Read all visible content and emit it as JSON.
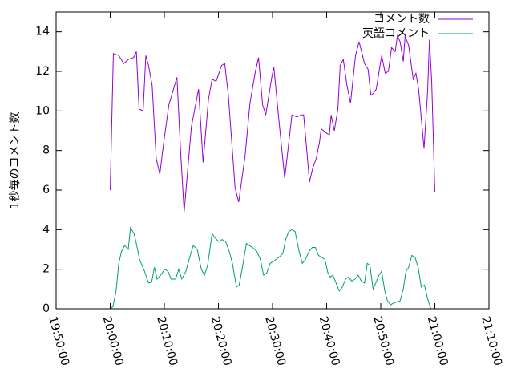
{
  "chart_data": {
    "type": "line",
    "title": "",
    "xlabel": "",
    "ylabel": "1秒毎のコメント数",
    "xlim": [
      "19:50:00",
      "21:10:00"
    ],
    "ylim": [
      0,
      15
    ],
    "x_ticks": [
      "19:50:00",
      "20:00:00",
      "20:10:00",
      "20:20:00",
      "20:30:00",
      "20:40:00",
      "20:50:00",
      "21:00:00",
      "21:10:00"
    ],
    "y_ticks": [
      "0",
      "2",
      "4",
      "6",
      "8",
      "10",
      "12",
      "14"
    ],
    "grid": false,
    "legend": "top-right",
    "series": [
      {
        "name": "コメント数",
        "color": "#9400d3",
        "points": [
          [
            "20:00:00",
            6.0
          ],
          [
            "20:00:35",
            12.9
          ],
          [
            "20:01:35",
            12.8
          ],
          [
            "20:02:30",
            12.4
          ],
          [
            "20:03:20",
            12.6
          ],
          [
            "20:04:20",
            12.7
          ],
          [
            "20:04:50",
            13.0
          ],
          [
            "20:05:20",
            10.1
          ],
          [
            "20:06:05",
            10.0
          ],
          [
            "20:06:35",
            12.8
          ],
          [
            "20:07:05",
            12.3
          ],
          [
            "20:07:45",
            11.3
          ],
          [
            "20:08:30",
            7.6
          ],
          [
            "20:09:10",
            6.8
          ],
          [
            "20:09:50",
            8.3
          ],
          [
            "20:10:50",
            10.3
          ],
          [
            "20:12:20",
            11.7
          ],
          [
            "20:13:00",
            8.0
          ],
          [
            "20:13:40",
            4.9
          ],
          [
            "20:15:00",
            9.2
          ],
          [
            "20:16:20",
            11.1
          ],
          [
            "20:17:10",
            7.4
          ],
          [
            "20:18:10",
            10.6
          ],
          [
            "20:18:50",
            11.6
          ],
          [
            "20:19:35",
            11.5
          ],
          [
            "20:20:35",
            12.3
          ],
          [
            "20:21:10",
            12.4
          ],
          [
            "20:21:50",
            10.8
          ],
          [
            "20:23:05",
            6.1
          ],
          [
            "20:23:45",
            5.4
          ],
          [
            "20:24:55",
            7.7
          ],
          [
            "20:25:50",
            10.4
          ],
          [
            "20:26:50",
            12.0
          ],
          [
            "20:27:25",
            12.7
          ],
          [
            "20:28:10",
            10.3
          ],
          [
            "20:28:45",
            9.8
          ],
          [
            "20:29:55",
            11.8
          ],
          [
            "20:30:15",
            12.2
          ],
          [
            "20:31:05",
            9.8
          ],
          [
            "20:32:15",
            6.6
          ],
          [
            "20:33:35",
            9.8
          ],
          [
            "20:34:30",
            9.7
          ],
          [
            "20:35:20",
            9.8
          ],
          [
            "20:35:45",
            9.8
          ],
          [
            "20:36:20",
            8.0
          ],
          [
            "20:36:50",
            6.4
          ],
          [
            "20:37:25",
            7.1
          ],
          [
            "20:38:05",
            7.6
          ],
          [
            "20:38:40",
            8.4
          ],
          [
            "20:39:00",
            9.1
          ],
          [
            "20:39:50",
            8.9
          ],
          [
            "20:40:30",
            8.8
          ],
          [
            "20:40:50",
            9.8
          ],
          [
            "20:41:25",
            9.0
          ],
          [
            "20:42:05",
            10.1
          ],
          [
            "20:42:30",
            12.3
          ],
          [
            "20:43:05",
            12.6
          ],
          [
            "20:43:45",
            11.3
          ],
          [
            "20:44:25",
            10.4
          ],
          [
            "20:45:20",
            12.8
          ],
          [
            "20:46:00",
            13.5
          ],
          [
            "20:47:00",
            12.4
          ],
          [
            "20:47:40",
            12.1
          ],
          [
            "20:48:10",
            10.8
          ],
          [
            "20:48:40",
            10.9
          ],
          [
            "20:49:10",
            11.1
          ],
          [
            "20:50:10",
            12.8
          ],
          [
            "20:50:50",
            11.9
          ],
          [
            "20:51:25",
            12.0
          ],
          [
            "20:52:00",
            13.2
          ],
          [
            "20:52:40",
            13.0
          ],
          [
            "20:53:05",
            13.8
          ],
          [
            "20:53:35",
            13.5
          ],
          [
            "20:54:10",
            12.5
          ],
          [
            "20:54:30",
            13.8
          ],
          [
            "20:55:10",
            13.3
          ],
          [
            "20:56:00",
            11.6
          ],
          [
            "20:56:30",
            11.9
          ],
          [
            "20:57:00",
            11.1
          ],
          [
            "20:58:00",
            8.1
          ],
          [
            "20:58:40",
            11.0
          ],
          [
            "20:59:00",
            13.6
          ],
          [
            "20:59:25",
            11.5
          ],
          [
            "21:00:00",
            5.9
          ]
        ]
      },
      {
        "name": "英語コメント",
        "color": "#009e73",
        "points": [
          [
            "20:00:00",
            0.0
          ],
          [
            "20:00:30",
            0.1
          ],
          [
            "20:01:05",
            0.9
          ],
          [
            "20:01:35",
            2.3
          ],
          [
            "20:02:05",
            2.9
          ],
          [
            "20:02:40",
            3.2
          ],
          [
            "20:03:20",
            3.0
          ],
          [
            "20:03:45",
            4.1
          ],
          [
            "20:04:25",
            3.8
          ],
          [
            "20:04:50",
            3.3
          ],
          [
            "20:05:25",
            2.5
          ],
          [
            "20:06:20",
            1.9
          ],
          [
            "20:07:05",
            1.3
          ],
          [
            "20:07:40",
            1.35
          ],
          [
            "20:08:10",
            2.1
          ],
          [
            "20:08:40",
            1.5
          ],
          [
            "20:09:20",
            1.7
          ],
          [
            "20:10:05",
            2.0
          ],
          [
            "20:10:40",
            1.9
          ],
          [
            "20:11:15",
            1.5
          ],
          [
            "20:12:05",
            1.5
          ],
          [
            "20:12:40",
            2.0
          ],
          [
            "20:13:15",
            1.5
          ],
          [
            "20:14:00",
            1.9
          ],
          [
            "20:14:35",
            2.5
          ],
          [
            "20:15:20",
            3.2
          ],
          [
            "20:16:05",
            3.0
          ],
          [
            "20:16:50",
            2.0
          ],
          [
            "20:17:25",
            1.7
          ],
          [
            "20:18:00",
            2.2
          ],
          [
            "20:18:50",
            3.8
          ],
          [
            "20:19:20",
            3.6
          ],
          [
            "20:20:00",
            3.4
          ],
          [
            "20:20:40",
            3.5
          ],
          [
            "20:21:20",
            3.4
          ],
          [
            "20:22:00",
            2.9
          ],
          [
            "20:22:35",
            2.3
          ],
          [
            "20:23:20",
            1.1
          ],
          [
            "20:23:50",
            1.2
          ],
          [
            "20:24:30",
            2.2
          ],
          [
            "20:25:10",
            3.3
          ],
          [
            "20:25:40",
            3.2
          ],
          [
            "20:26:20",
            3.1
          ],
          [
            "20:27:05",
            2.9
          ],
          [
            "20:27:45",
            2.5
          ],
          [
            "20:28:20",
            1.7
          ],
          [
            "20:28:55",
            1.8
          ],
          [
            "20:29:35",
            2.3
          ],
          [
            "20:30:10",
            2.4
          ],
          [
            "20:31:10",
            2.6
          ],
          [
            "20:31:55",
            2.8
          ],
          [
            "20:32:25",
            3.5
          ],
          [
            "20:33:00",
            3.9
          ],
          [
            "20:33:35",
            4.0
          ],
          [
            "20:34:10",
            3.9
          ],
          [
            "20:34:55",
            2.9
          ],
          [
            "20:35:30",
            2.3
          ],
          [
            "20:36:05",
            2.5
          ],
          [
            "20:36:45",
            2.9
          ],
          [
            "20:37:20",
            3.1
          ],
          [
            "20:37:55",
            3.1
          ],
          [
            "20:38:30",
            2.7
          ],
          [
            "20:39:05",
            2.6
          ],
          [
            "20:39:40",
            2.5
          ],
          [
            "20:40:15",
            1.8
          ],
          [
            "20:40:40",
            1.6
          ],
          [
            "20:41:10",
            1.7
          ],
          [
            "20:41:45",
            1.3
          ],
          [
            "20:42:20",
            0.9
          ],
          [
            "20:42:55",
            1.1
          ],
          [
            "20:43:30",
            1.5
          ],
          [
            "20:44:00",
            1.6
          ],
          [
            "20:44:40",
            1.4
          ],
          [
            "20:45:15",
            1.5
          ],
          [
            "20:45:50",
            1.7
          ],
          [
            "20:46:25",
            1.4
          ],
          [
            "20:47:00",
            1.3
          ],
          [
            "20:47:30",
            2.3
          ],
          [
            "20:48:00",
            2.2
          ],
          [
            "20:48:35",
            1.0
          ],
          [
            "20:49:05",
            1.3
          ],
          [
            "20:49:40",
            1.7
          ],
          [
            "20:50:10",
            1.9
          ],
          [
            "20:50:45",
            0.9
          ],
          [
            "20:51:15",
            0.4
          ],
          [
            "20:51:50",
            0.2
          ],
          [
            "20:52:25",
            0.3
          ],
          [
            "20:53:00",
            0.35
          ],
          [
            "20:53:35",
            0.4
          ],
          [
            "20:54:10",
            1.0
          ],
          [
            "20:54:40",
            1.9
          ],
          [
            "20:55:10",
            2.1
          ],
          [
            "20:55:45",
            2.7
          ],
          [
            "20:56:20",
            2.6
          ],
          [
            "20:56:55",
            2.1
          ],
          [
            "20:57:30",
            1.1
          ],
          [
            "20:58:05",
            1.2
          ],
          [
            "20:58:40",
            0.5
          ],
          [
            "20:59:15",
            0.0
          ],
          [
            "21:00:00",
            0.0
          ]
        ]
      }
    ]
  }
}
